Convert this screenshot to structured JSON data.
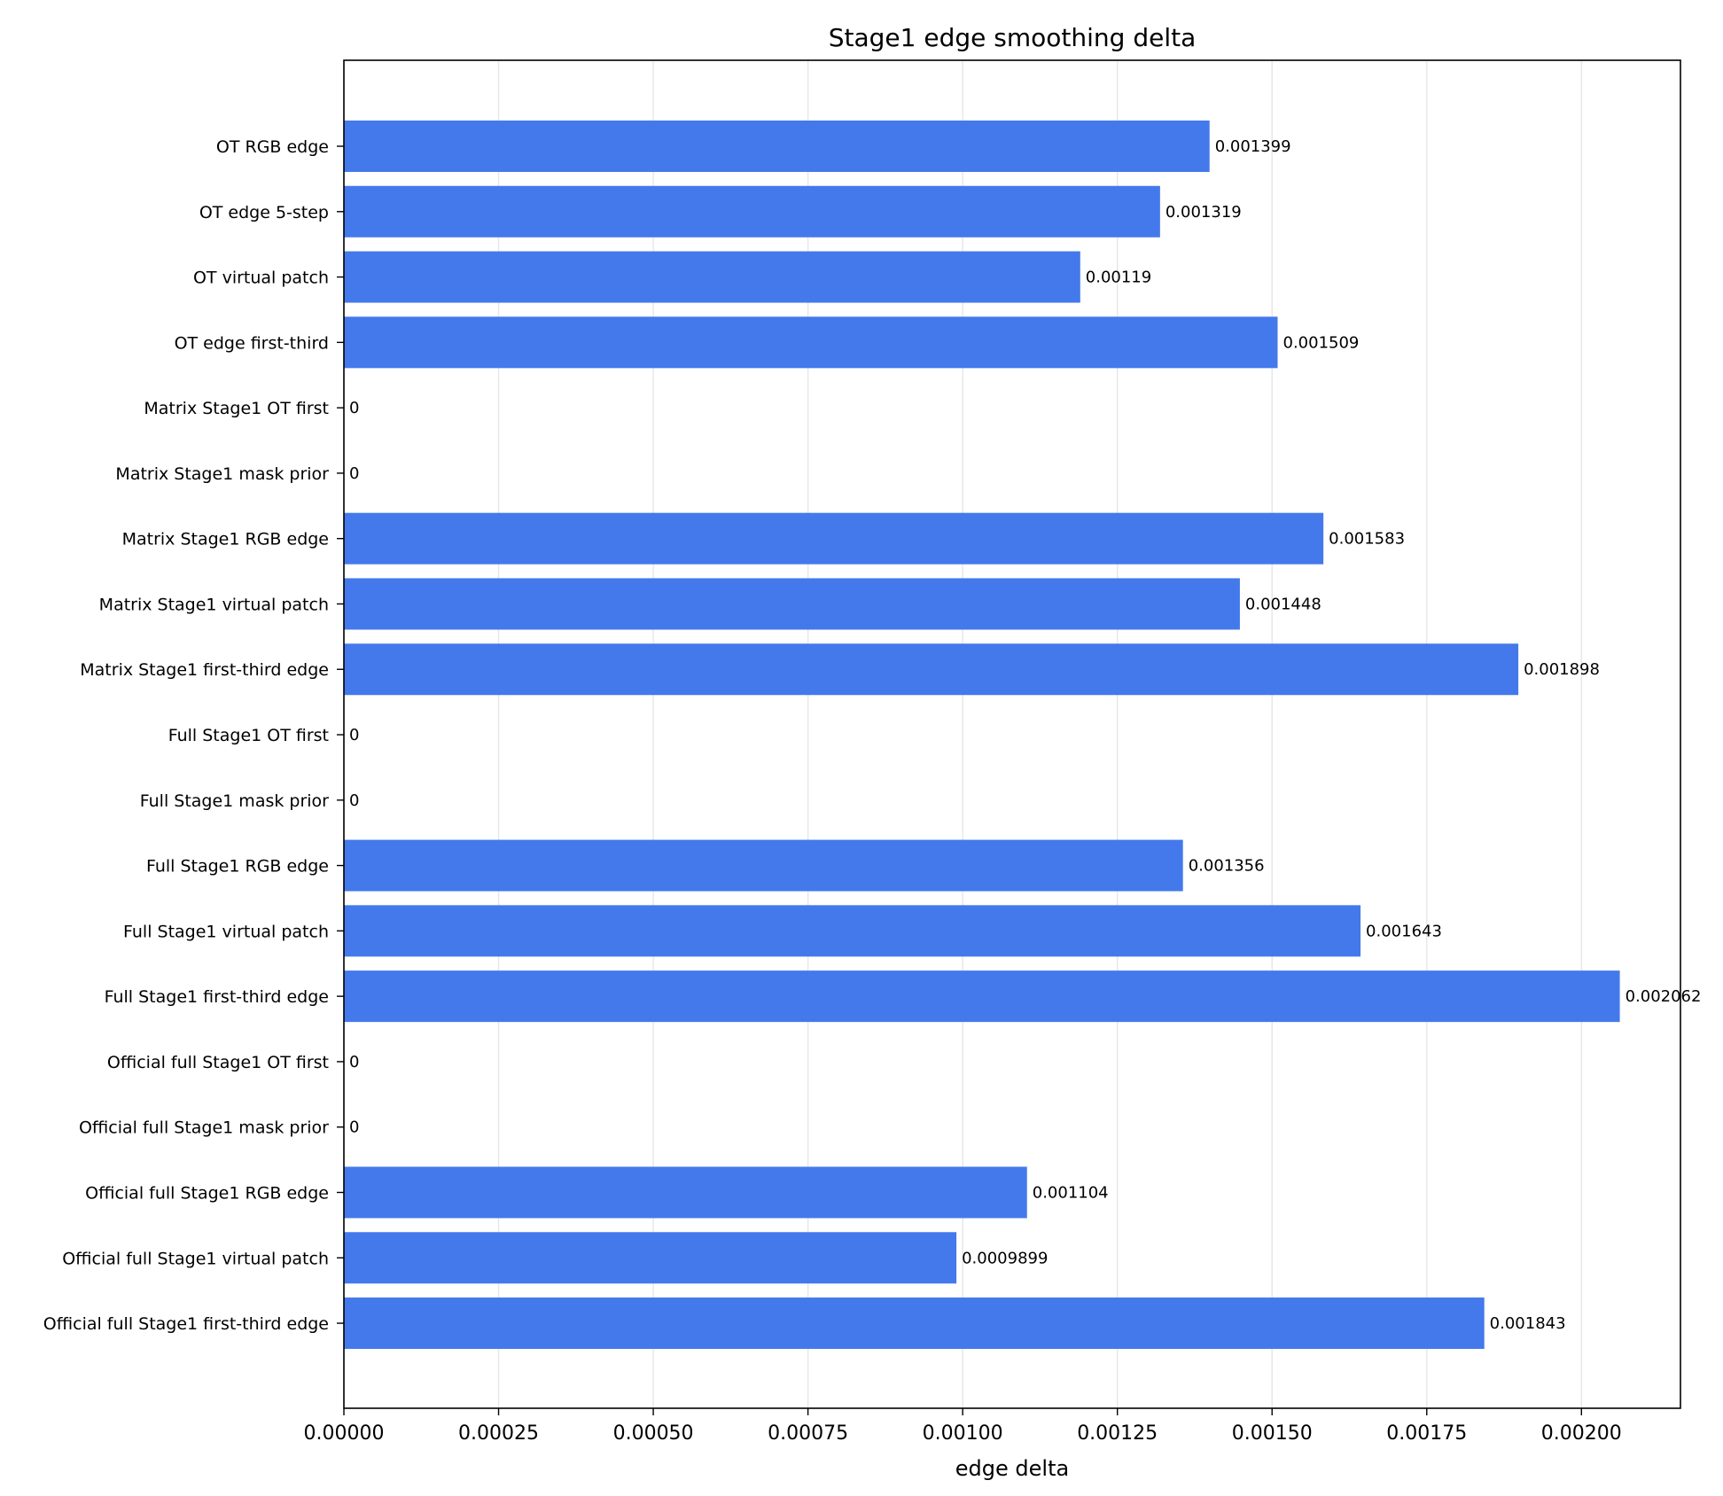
{
  "chart_data": {
    "type": "bar",
    "orientation": "horizontal",
    "title": "Stage1 edge smoothing delta",
    "xlabel": "edge delta",
    "ylabel": "",
    "xlim": [
      0,
      0.00216
    ],
    "x_ticks": [
      0,
      0.00025,
      0.0005,
      0.00075,
      0.001,
      0.00125,
      0.0015,
      0.00175,
      0.002
    ],
    "x_tick_labels": [
      "0.00000",
      "0.00025",
      "0.00050",
      "0.00075",
      "0.00100",
      "0.00125",
      "0.00150",
      "0.00175",
      "0.00200"
    ],
    "grid": "vertical",
    "bar_color": "#4479ec",
    "grid_color": "#e6e6e6",
    "categories": [
      "OT RGB edge",
      "OT edge 5-step",
      "OT virtual patch",
      "OT edge first-third",
      "Matrix Stage1 OT first",
      "Matrix Stage1 mask prior",
      "Matrix Stage1 RGB edge",
      "Matrix Stage1 virtual patch",
      "Matrix Stage1 first-third edge",
      "Full Stage1 OT first",
      "Full Stage1 mask prior",
      "Full Stage1 RGB edge",
      "Full Stage1 virtual patch",
      "Full Stage1 first-third edge",
      "Official full Stage1 OT first",
      "Official full Stage1 mask prior",
      "Official full Stage1 RGB edge",
      "Official full Stage1 virtual patch",
      "Official full Stage1 first-third edge"
    ],
    "values": [
      0.001399,
      0.001319,
      0.00119,
      0.001509,
      0,
      0,
      0.001583,
      0.001448,
      0.001898,
      0,
      0,
      0.001356,
      0.001643,
      0.002062,
      0,
      0,
      0.001104,
      0.0009899,
      0.001843
    ],
    "value_labels": [
      "0.001399",
      "0.001319",
      "0.00119",
      "0.001509",
      "0",
      "0",
      "0.001583",
      "0.001448",
      "0.001898",
      "0",
      "0",
      "0.001356",
      "0.001643",
      "0.002062",
      "0",
      "0",
      "0.001104",
      "0.0009899",
      "0.001843"
    ]
  }
}
